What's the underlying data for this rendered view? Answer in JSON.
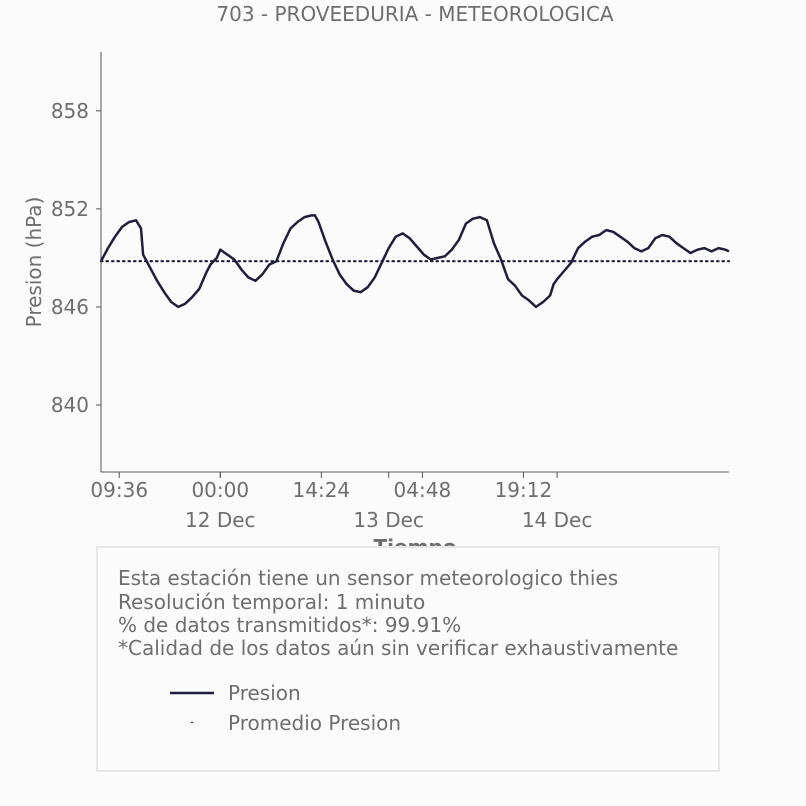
{
  "chart_data": {
    "type": "line",
    "title": "703 - PROVEEDURIA - METEOROLOGICA",
    "xlabel": "Tiempo",
    "ylabel": "Presion (hPa)",
    "ylim": [
      835.9,
      861.6
    ],
    "y_ticks": [
      840,
      846,
      852,
      858
    ],
    "x_range": [
      7.0,
      96.5
    ],
    "x_unit": "hours since 11 Dec 00:00",
    "x_ticks": [
      {
        "x": 9.6,
        "label": "09:36"
      },
      {
        "x": 24.0,
        "label": "00:00"
      },
      {
        "x": 38.4,
        "label": "14:24"
      },
      {
        "x": 52.8,
        "label": "04:48"
      },
      {
        "x": 67.2,
        "label": "19:12"
      }
    ],
    "x_major_ticks": [
      {
        "x": 24.0,
        "label": "12 Dec"
      },
      {
        "x": 48.0,
        "label": "13 Dec"
      },
      {
        "x": 72.0,
        "label": "14 Dec"
      }
    ],
    "grid": false,
    "series": [
      {
        "name": "Presion",
        "color": "#1f1f3d",
        "style": "solid",
        "x": [
          7.0,
          8.0,
          9.0,
          10.0,
          11.0,
          12.0,
          12.7,
          13.0,
          14.0,
          15.0,
          16.0,
          17.0,
          18.0,
          19.0,
          20.0,
          21.0,
          22.0,
          22.6,
          23.5,
          24.0,
          25.0,
          26.0,
          27.0,
          28.0,
          29.0,
          30.0,
          31.0,
          32.0,
          33.0,
          34.0,
          35.0,
          36.0,
          37.0,
          37.5,
          38.0,
          39.0,
          40.0,
          41.0,
          42.0,
          43.0,
          44.0,
          45.0,
          46.0,
          47.0,
          48.0,
          49.0,
          50.0,
          51.0,
          52.0,
          53.0,
          54.0,
          55.0,
          56.0,
          57.0,
          58.0,
          58.5,
          59.0,
          60.0,
          61.0,
          62.0,
          63.0,
          64.0,
          65.0,
          66.0,
          67.0,
          68.0,
          69.0,
          70.0,
          71.0,
          71.5,
          72.0,
          73.0,
          74.0,
          75.0,
          76.0,
          77.0,
          78.0,
          79.0,
          80.0,
          81.0,
          82.0,
          83.0,
          84.0,
          85.0,
          86.0,
          87.0,
          88.0,
          89.0,
          90.0,
          91.0,
          92.0,
          93.0,
          94.0,
          95.0,
          96.0,
          96.5
        ],
        "y": [
          848.8,
          849.6,
          850.3,
          850.9,
          851.2,
          851.3,
          850.8,
          849.2,
          848.4,
          847.6,
          846.9,
          846.3,
          846.0,
          846.2,
          846.6,
          847.1,
          848.1,
          848.6,
          849.0,
          849.5,
          849.2,
          848.9,
          848.3,
          847.8,
          847.6,
          848.0,
          848.6,
          848.8,
          849.9,
          850.8,
          851.2,
          851.5,
          851.6,
          851.6,
          851.2,
          850.0,
          848.9,
          848.0,
          847.4,
          847.0,
          846.9,
          847.2,
          847.8,
          848.7,
          849.6,
          850.3,
          850.5,
          850.2,
          849.7,
          849.2,
          848.9,
          849.0,
          849.1,
          849.5,
          850.1,
          850.6,
          851.1,
          851.4,
          851.5,
          851.3,
          849.9,
          848.9,
          847.7,
          847.3,
          846.7,
          846.4,
          846.0,
          846.3,
          846.7,
          847.4,
          847.7,
          848.2,
          848.7,
          849.6,
          850.0,
          850.3,
          850.4,
          850.7,
          850.6,
          850.3,
          850.0,
          849.6,
          849.4,
          849.6,
          850.2,
          850.4,
          850.3,
          849.9,
          849.6,
          849.3,
          849.5,
          849.6,
          849.4,
          849.6,
          849.5,
          849.4
        ]
      },
      {
        "name": "Promedio Presion",
        "color": "#1f1f3d",
        "style": "dotted",
        "constant": 848.8
      }
    ]
  },
  "info": {
    "line1": "Esta estación tiene un sensor meteorologico thies",
    "line2": "Resolución temporal: 1 minuto",
    "line3": "% de datos transmitidos*: 99.91%",
    "line4": "*Calidad de los datos aún sin verificar exhaustivamente"
  },
  "legend": {
    "items": [
      {
        "label": "Presion"
      },
      {
        "label": "Promedio Presion"
      }
    ]
  },
  "colors": {
    "text": "#6e6e6e",
    "line": "#1f1f3d",
    "box_border": "#e6e6e6"
  }
}
